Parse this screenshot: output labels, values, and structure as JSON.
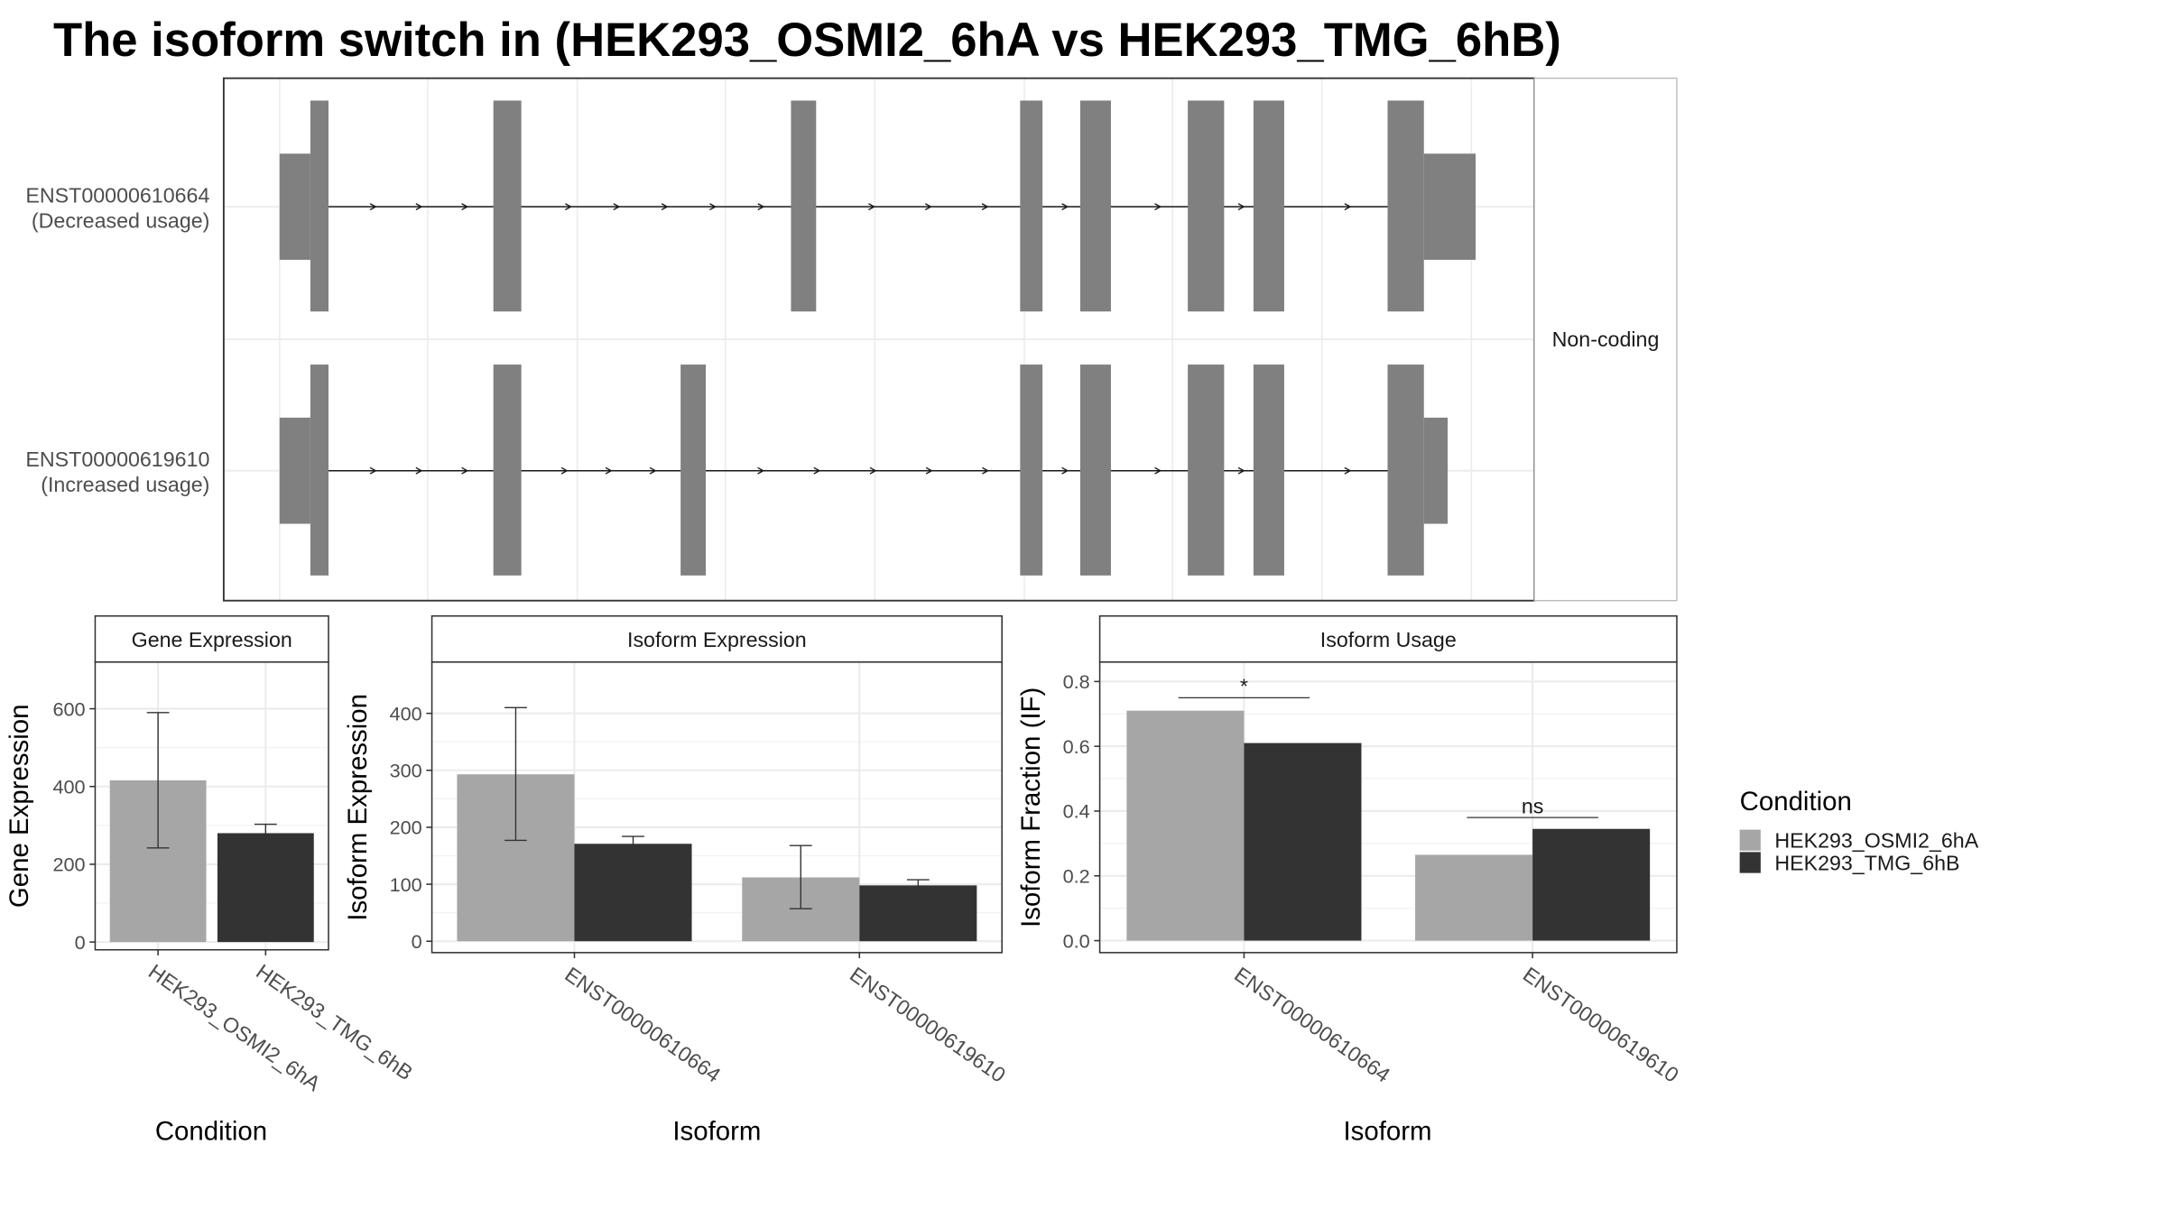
{
  "title": "The isoform switch in  (HEK293_OSMI2_6hA vs HEK293_TMG_6hB)",
  "colors": {
    "cond_a": "#a6a6a6",
    "cond_b": "#333333",
    "exon": "#808080",
    "grid": "#ebebeb",
    "strip": "#ffffff",
    "frame": "#333333"
  },
  "chart_data": [
    {
      "type": "gene-structure",
      "facet_label": "Non-coding",
      "transcripts": [
        {
          "id": "ENST00000610664",
          "usage": "(Decreased usage)",
          "exons": [
            [
              200,
              235
            ],
            [
              353,
              373
            ],
            [
              566,
              584
            ],
            [
              730,
              746
            ],
            [
              773,
              795
            ],
            [
              850,
              876
            ],
            [
              897,
              919
            ],
            [
              993,
              1056
            ]
          ],
          "narrow_parts": [
            [
              200,
              222
            ],
            [
              1019,
              1056
            ]
          ]
        },
        {
          "id": "ENST00000619610",
          "usage": "(Increased usage)",
          "exons": [
            [
              200,
              235
            ],
            [
              353,
              373
            ],
            [
              487,
              505
            ],
            [
              730,
              746
            ],
            [
              773,
              795
            ],
            [
              850,
              876
            ],
            [
              897,
              919
            ],
            [
              993,
              1036
            ]
          ],
          "narrow_parts": [
            [
              200,
              222
            ],
            [
              1019,
              1036
            ]
          ]
        }
      ],
      "x_range": [
        160,
        1098
      ]
    },
    {
      "type": "bar",
      "strip": "Gene Expression",
      "xlabel": "Condition",
      "ylabel": "Gene Expression",
      "ylim": [
        -20,
        720
      ],
      "yticks": [
        0,
        200,
        400,
        600
      ],
      "categories": [
        "HEK293_OSMI2_6hA",
        "HEK293_TMG_6hB"
      ],
      "series": [
        {
          "name": "HEK293_OSMI2_6hA",
          "values": [
            416,
            null
          ],
          "err_low": [
            242,
            null
          ],
          "err_high": [
            590,
            null
          ]
        },
        {
          "name": "HEK293_TMG_6hB",
          "values": [
            null,
            280
          ],
          "err_low": [
            null,
            258
          ],
          "err_high": [
            null,
            303
          ]
        }
      ]
    },
    {
      "type": "bar",
      "strip": "Isoform Expression",
      "xlabel": "Isoform",
      "ylabel": "Isoform Expression",
      "ylim": [
        -20,
        490
      ],
      "yticks": [
        0,
        100,
        200,
        300,
        400
      ],
      "categories": [
        "ENST00000610664",
        "ENST00000619610"
      ],
      "series": [
        {
          "name": "HEK293_OSMI2_6hA",
          "values": [
            293,
            112
          ],
          "err_low": [
            177,
            57
          ],
          "err_high": [
            410,
            168
          ]
        },
        {
          "name": "HEK293_TMG_6hB",
          "values": [
            171,
            98
          ],
          "err_low": [
            157,
            88
          ],
          "err_high": [
            184,
            108
          ]
        }
      ]
    },
    {
      "type": "bar",
      "strip": "Isoform Usage",
      "xlabel": "Isoform",
      "ylabel": "Isoform Fraction (IF)",
      "ylim": [
        -0.037,
        0.86
      ],
      "yticks": [
        "0.0",
        "0.2",
        "0.4",
        "0.6",
        "0.8"
      ],
      "categories": [
        "ENST00000610664",
        "ENST00000619610"
      ],
      "series": [
        {
          "name": "HEK293_OSMI2_6hA",
          "values": [
            0.71,
            0.265
          ]
        },
        {
          "name": "HEK293_TMG_6hB",
          "values": [
            0.61,
            0.345
          ]
        }
      ],
      "significance": [
        {
          "label": "*",
          "y": 0.75
        },
        {
          "label": "ns",
          "y": 0.38
        }
      ]
    }
  ],
  "legend": {
    "title": "Condition",
    "items": [
      "HEK293_OSMI2_6hA",
      "HEK293_TMG_6hB"
    ]
  }
}
